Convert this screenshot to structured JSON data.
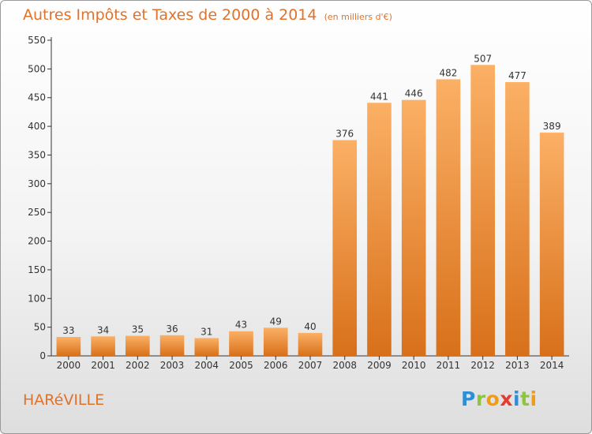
{
  "header": {
    "title": "Autres Impôts et Taxes de 2000 à 2014",
    "unit": "(en milliers d'€)"
  },
  "footer": {
    "commune": "HARéVILLE",
    "logo_letters": [
      "P",
      "r",
      "o",
      "x",
      "i",
      "t",
      "i"
    ],
    "logo_colors": [
      "#2f8fd6",
      "#8cc63f",
      "#f39c12",
      "#e63b2e",
      "#2f8fd6",
      "#8cc63f",
      "#f39c12"
    ]
  },
  "colors": {
    "bar_top": "#fbb065",
    "bar_bottom": "#d8701a",
    "text_accent": "#e0722a"
  },
  "chart_data": {
    "type": "bar",
    "title": "Autres Impôts et Taxes de 2000 à 2014",
    "subtitle": "(en milliers d'€)",
    "xlabel": "",
    "ylabel": "",
    "categories": [
      "2000",
      "2001",
      "2002",
      "2003",
      "2004",
      "2005",
      "2006",
      "2007",
      "2008",
      "2009",
      "2010",
      "2011",
      "2012",
      "2013",
      "2014"
    ],
    "values": [
      33,
      34,
      35,
      36,
      31,
      43,
      49,
      40,
      376,
      441,
      446,
      482,
      507,
      477,
      389
    ],
    "ylim": [
      0,
      550
    ],
    "yticks": [
      0,
      50,
      100,
      150,
      200,
      250,
      300,
      350,
      400,
      450,
      500,
      550
    ],
    "grid": false,
    "data_labels": true
  }
}
